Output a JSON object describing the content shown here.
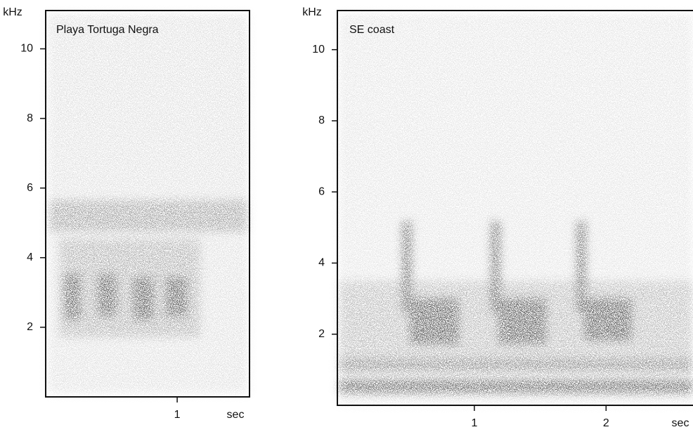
{
  "chart_data": [
    {
      "type": "spectrogram",
      "title": "Playa Tortuga Negra",
      "y_label": "kHz",
      "x_label": "sec",
      "xlim": [
        0,
        1.55
      ],
      "xticks": [
        1
      ],
      "ylim": [
        0,
        11.1
      ],
      "yticks": [
        2,
        4,
        6,
        8,
        10
      ]
    },
    {
      "type": "spectrogram",
      "title": "SE coast",
      "y_label": "kHz",
      "x_label": "sec",
      "xlim": [
        -0.04,
        2.66
      ],
      "xticks": [
        1,
        2
      ],
      "ylim": [
        0,
        11.1
      ],
      "yticks": [
        2,
        4,
        6,
        8,
        10
      ]
    }
  ]
}
